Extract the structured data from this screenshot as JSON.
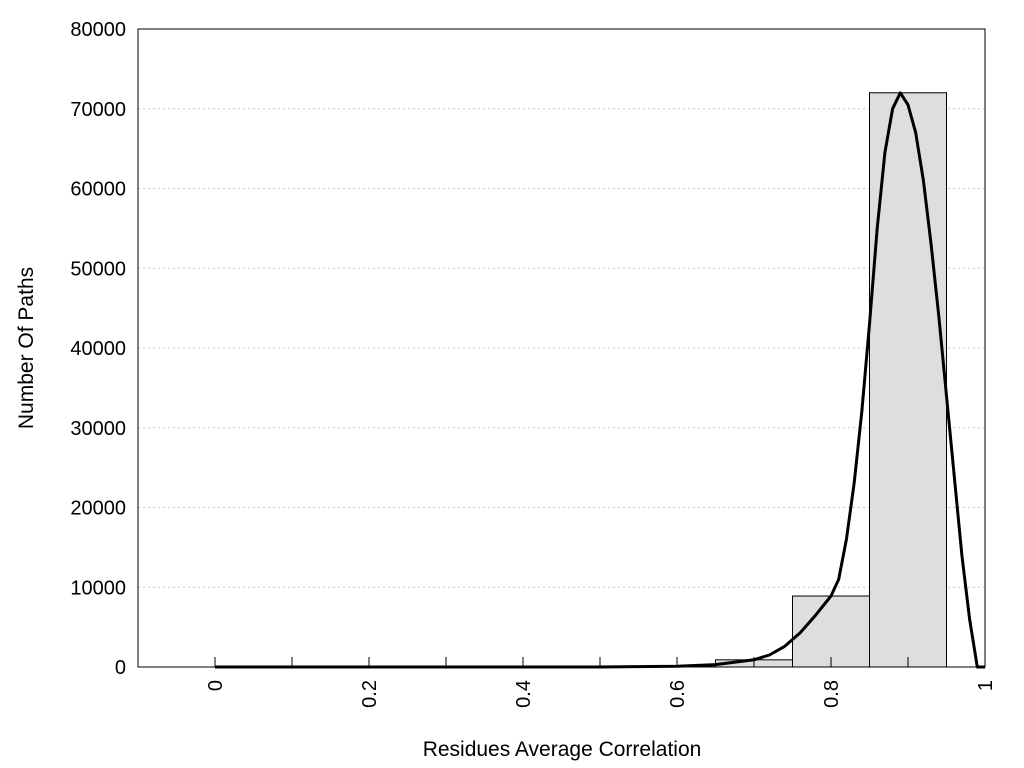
{
  "chart_data": {
    "type": "bar",
    "title": "",
    "xlabel": "Residues Average Correlation",
    "ylabel": "Number Of Paths",
    "xlim": [
      -0.1,
      1.0
    ],
    "ylim": [
      0,
      80000
    ],
    "grid": true,
    "grid_axis": "y",
    "x_ticks": [
      "0",
      "0.2",
      "0.4",
      "0.6",
      "0.8",
      "1"
    ],
    "x_tick_values": [
      0,
      0.2,
      0.4,
      0.6,
      0.8,
      1.0
    ],
    "x_minor_ticks": [
      0.1,
      0.3,
      0.5,
      0.7,
      0.9
    ],
    "y_ticks": [
      "0",
      "10000",
      "20000",
      "30000",
      "40000",
      "50000",
      "60000",
      "70000",
      "80000"
    ],
    "y_tick_values": [
      0,
      10000,
      20000,
      30000,
      40000,
      50000,
      60000,
      70000,
      80000
    ],
    "bars": [
      {
        "x0": 0.0,
        "x1": 0.1,
        "value": 0
      },
      {
        "x0": 0.1,
        "x1": 0.2,
        "value": 0
      },
      {
        "x0": 0.2,
        "x1": 0.3,
        "value": 0
      },
      {
        "x0": 0.3,
        "x1": 0.4,
        "value": 0
      },
      {
        "x0": 0.4,
        "x1": 0.5,
        "value": 0
      },
      {
        "x0": 0.5,
        "x1": 0.6,
        "value": 50
      },
      {
        "x0": 0.6,
        "x1": 0.65,
        "value": 150
      },
      {
        "x0": 0.65,
        "x1": 0.75,
        "value": 900
      },
      {
        "x0": 0.75,
        "x1": 0.85,
        "value": 8900
      },
      {
        "x0": 0.85,
        "x1": 0.95,
        "value": 72000
      }
    ],
    "curve": {
      "x": [
        0.0,
        0.1,
        0.2,
        0.3,
        0.4,
        0.5,
        0.55,
        0.6,
        0.65,
        0.7,
        0.72,
        0.74,
        0.76,
        0.78,
        0.8,
        0.81,
        0.82,
        0.83,
        0.84,
        0.85,
        0.86,
        0.87,
        0.88,
        0.89,
        0.9,
        0.91,
        0.92,
        0.93,
        0.94,
        0.95,
        0.96,
        0.97,
        0.98,
        0.99,
        1.0
      ],
      "y": [
        0,
        0,
        0,
        0,
        0,
        0,
        50,
        100,
        300,
        900,
        1500,
        2600,
        4300,
        6500,
        8900,
        11000,
        16000,
        23000,
        32000,
        43000,
        55000,
        64500,
        70000,
        72000,
        70500,
        67000,
        61000,
        53000,
        44000,
        34000,
        24000,
        14000,
        6000,
        0,
        0
      ]
    }
  }
}
